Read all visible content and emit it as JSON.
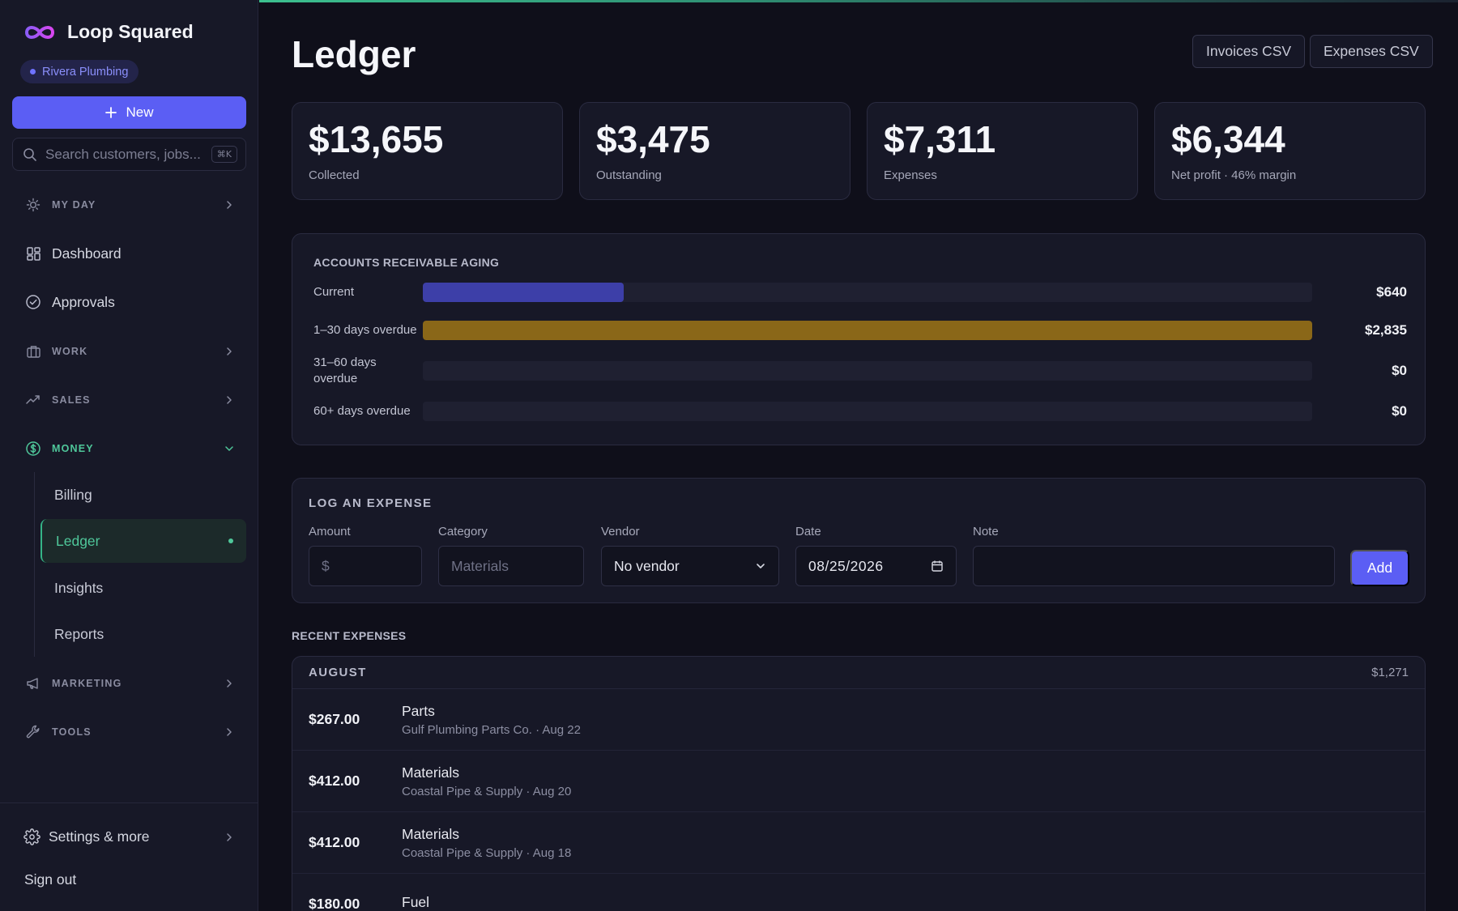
{
  "brand": {
    "name": "Loop Squared",
    "org": "Rivera Plumbing"
  },
  "sidebar": {
    "new_label": "New",
    "search_placeholder": "Search customers, jobs...",
    "search_shortcut": "⌘K",
    "sections": {
      "my_day": "MY DAY",
      "dashboard": "Dashboard",
      "approvals": "Approvals",
      "work": "WORK",
      "sales": "SALES",
      "money": "MONEY",
      "marketing": "MARKETING",
      "tools": "TOOLS"
    },
    "money_items": [
      "Billing",
      "Ledger",
      "Insights",
      "Reports"
    ],
    "settings_label": "Settings & more",
    "signout_label": "Sign out"
  },
  "header": {
    "title": "Ledger",
    "invoices_csv": "Invoices CSV",
    "expenses_csv": "Expenses CSV"
  },
  "stats": [
    {
      "value": "$13,655",
      "label": "Collected"
    },
    {
      "value": "$3,475",
      "label": "Outstanding"
    },
    {
      "value": "$7,311",
      "label": "Expenses"
    },
    {
      "value": "$6,344",
      "label": "Net profit · 46% margin"
    }
  ],
  "aging": {
    "heading": "ACCOUNTS RECEIVABLE AGING",
    "rows": [
      {
        "label": "Current",
        "amount": "$640",
        "value": 640,
        "color": "#3d3fa8"
      },
      {
        "label": "1–30 days overdue",
        "amount": "$2,835",
        "value": 2835,
        "color": "#8a6718"
      },
      {
        "label": "31–60 days overdue",
        "amount": "$0",
        "value": 0,
        "color": "#3d3fa8"
      },
      {
        "label": "60+ days overdue",
        "amount": "$0",
        "value": 0,
        "color": "#3d3fa8"
      }
    ]
  },
  "expense_form": {
    "heading": "LOG AN EXPENSE",
    "amount_label": "Amount",
    "amount_prefix": "$",
    "category_label": "Category",
    "category_placeholder": "Materials",
    "vendor_label": "Vendor",
    "vendor_value": "No vendor",
    "date_label": "Date",
    "date_value": "08/25/2026",
    "note_label": "Note",
    "add_label": "Add"
  },
  "recent": {
    "heading": "RECENT EXPENSES",
    "group": "AUGUST",
    "group_total": "$1,271",
    "items": [
      {
        "amount": "$267.00",
        "category": "Parts",
        "meta": "Gulf Plumbing Parts Co. · Aug 22"
      },
      {
        "amount": "$412.00",
        "category": "Materials",
        "meta": "Coastal Pipe & Supply · Aug 20"
      },
      {
        "amount": "$412.00",
        "category": "Materials",
        "meta": "Coastal Pipe & Supply · Aug 18"
      },
      {
        "amount": "$180.00",
        "category": "Fuel",
        "meta": ""
      }
    ]
  },
  "colors": {
    "accent": "#5b5ef4",
    "money": "#4fc79a"
  }
}
